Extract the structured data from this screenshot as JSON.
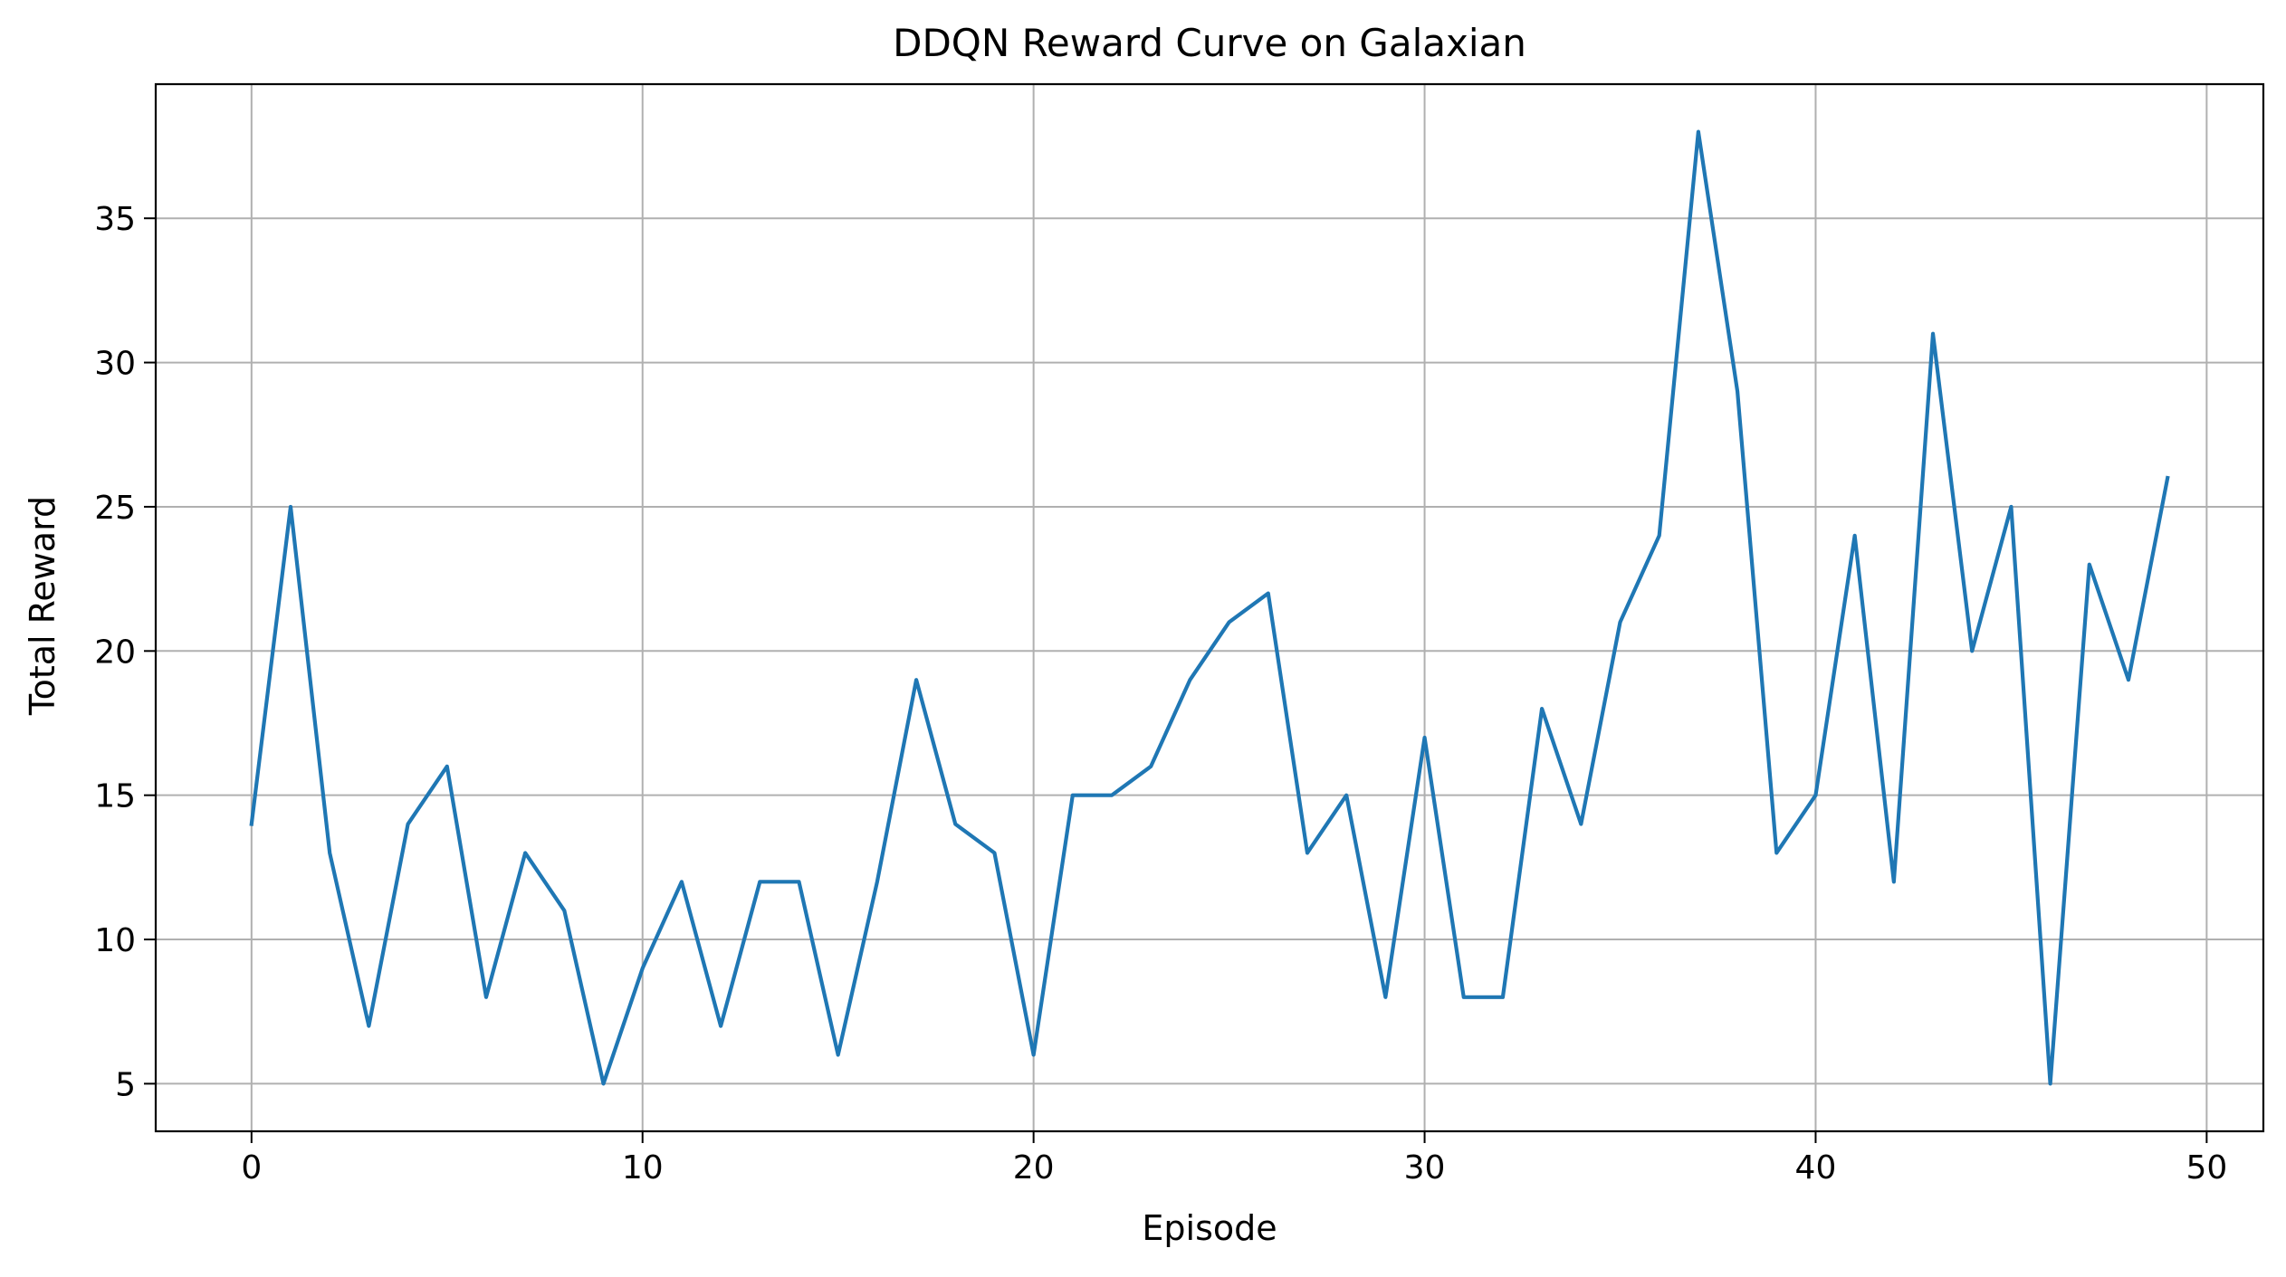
{
  "chart_data": {
    "type": "line",
    "title": "DDQN Reward Curve on Galaxian",
    "xlabel": "Episode",
    "ylabel": "Total Reward",
    "xlim": [
      -2.45,
      51.45
    ],
    "ylim": [
      3.35,
      39.65
    ],
    "xticks": [
      0,
      10,
      20,
      30,
      40,
      50
    ],
    "yticks": [
      5,
      10,
      15,
      20,
      25,
      30,
      35
    ],
    "grid": true,
    "legend": "none",
    "series": [
      {
        "color": "#1f77b4",
        "x": [
          0,
          1,
          2,
          3,
          4,
          5,
          6,
          7,
          8,
          9,
          10,
          11,
          12,
          13,
          14,
          15,
          16,
          17,
          18,
          19,
          20,
          21,
          22,
          23,
          24,
          25,
          26,
          27,
          28,
          29,
          30,
          31,
          32,
          33,
          34,
          35,
          36,
          37,
          38,
          39,
          40,
          41,
          42,
          43,
          44,
          45,
          46,
          47,
          48,
          49
        ],
        "y": [
          14,
          25,
          13,
          7,
          14,
          16,
          8,
          13,
          11,
          5,
          9,
          12,
          7,
          12,
          12,
          6,
          12,
          19,
          14,
          13,
          6,
          15,
          15,
          16,
          19,
          21,
          22,
          13,
          15,
          8,
          17,
          8,
          8,
          18,
          14,
          21,
          24,
          38,
          29,
          13,
          15,
          24,
          12,
          31,
          20,
          25,
          5,
          23,
          19,
          26
        ]
      }
    ]
  }
}
